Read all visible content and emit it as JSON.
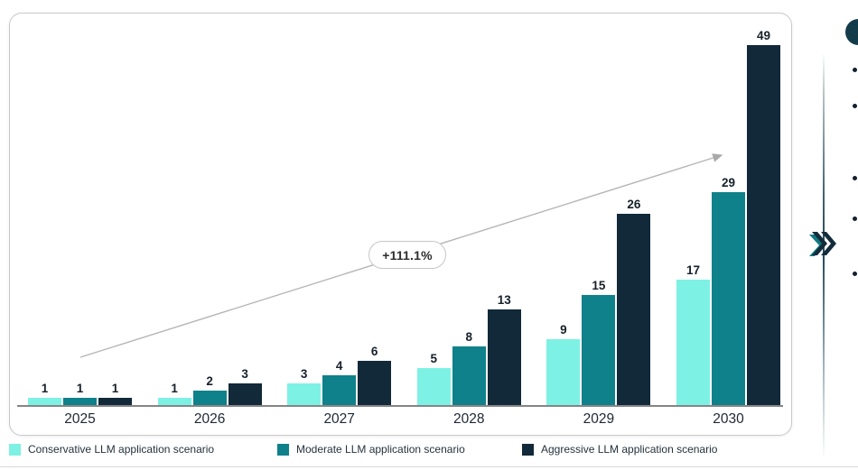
{
  "chart_data": {
    "type": "bar",
    "title": "",
    "xlabel": "",
    "ylabel": "",
    "categories": [
      "2025",
      "2026",
      "2027",
      "2028",
      "2029",
      "2030"
    ],
    "series": [
      {
        "name": "Conservative LLM application scenario",
        "color": "#7EF1E5",
        "values": [
          1,
          1,
          3,
          5,
          9,
          17
        ]
      },
      {
        "name": "Moderate LLM application scenario",
        "color": "#0E818A",
        "values": [
          1,
          2,
          4,
          8,
          15,
          29
        ]
      },
      {
        "name": "Aggressive LLM application scenario",
        "color": "#112939",
        "values": [
          1,
          3,
          6,
          13,
          26,
          49
        ]
      }
    ],
    "value_labels_shown": true,
    "ylim": [
      0,
      50
    ],
    "grid": false,
    "legend_position": "bottom",
    "annotation": {
      "label": "+111.1%",
      "shape": "rounded-pill-on-arrow"
    }
  },
  "decorations": {
    "growth_arrow_icon": "diagonal-arrow-up-right",
    "double_chevron_icon": "double-chevron-right",
    "circle_icon": "teal-circle-partial",
    "bullet_dot_count": 5,
    "colors": {
      "circle": "#133b4a",
      "chevron_navy": "#132c3c",
      "chevron_teal": "#0f7a82",
      "axis_line": "#858585",
      "arrow": "#b3b3b3",
      "panel_border": "#c9c9c9"
    }
  }
}
